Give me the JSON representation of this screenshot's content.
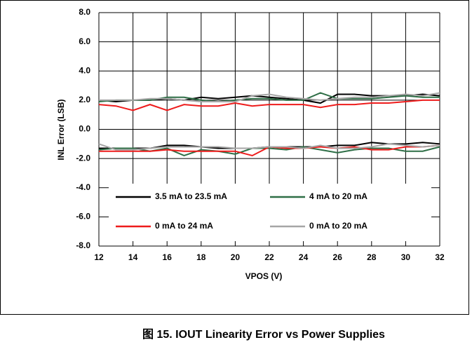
{
  "chart_data": {
    "type": "line",
    "caption": "图 15. IOUT Linearity Error vs Power Supplies",
    "xlabel": "VPOS (V)",
    "ylabel": "INL Error (LSB)",
    "x": [
      12,
      13,
      14,
      15,
      16,
      17,
      18,
      19,
      20,
      21,
      22,
      23,
      24,
      25,
      26,
      27,
      28,
      29,
      30,
      31,
      32
    ],
    "xlim": [
      12,
      32
    ],
    "xticks": [
      12,
      14,
      16,
      18,
      20,
      22,
      24,
      26,
      28,
      30,
      32
    ],
    "ylim": [
      -8,
      8
    ],
    "yticks": [
      {
        "value": -8,
        "label": "-8.0"
      },
      {
        "value": -6,
        "label": "-6.0"
      },
      {
        "value": -4,
        "label": "-4.0"
      },
      {
        "value": -2,
        "label": "-2.0"
      },
      {
        "value": 0,
        "label": "0.0"
      },
      {
        "value": 2,
        "label": "2.0"
      },
      {
        "value": 4,
        "label": "4.0"
      },
      {
        "value": 6,
        "label": "6.0"
      },
      {
        "value": 8,
        "label": "8.0"
      }
    ],
    "grid": true,
    "legend": "bottom",
    "series": [
      {
        "name": "3.5 mA to 23.5 mA",
        "color": "#000000",
        "values": [
          2.0,
          1.9,
          2.0,
          2.0,
          2.1,
          2.0,
          2.2,
          2.1,
          2.2,
          2.3,
          2.2,
          2.1,
          2.0,
          1.8,
          2.4,
          2.4,
          2.3,
          2.3,
          2.3,
          2.4,
          2.3
        ],
        "low_values": [
          -1.3,
          -1.3,
          -1.3,
          -1.3,
          -1.1,
          -1.1,
          -1.2,
          -1.3,
          -1.3,
          -1.3,
          -1.2,
          -1.2,
          -1.2,
          -1.2,
          -1.1,
          -1.1,
          -0.9,
          -1.0,
          -1.0,
          -0.9,
          -1.0
        ]
      },
      {
        "name": "4 mA to 20 mA",
        "color": "#2e6e46",
        "values": [
          1.9,
          2.0,
          2.0,
          2.0,
          2.2,
          2.2,
          2.0,
          1.9,
          2.0,
          2.1,
          2.1,
          2.0,
          2.0,
          2.5,
          2.1,
          2.1,
          2.1,
          2.2,
          2.3,
          2.2,
          2.2
        ],
        "low_values": [
          -1.4,
          -1.3,
          -1.3,
          -1.5,
          -1.3,
          -1.8,
          -1.4,
          -1.5,
          -1.7,
          -1.3,
          -1.3,
          -1.4,
          -1.2,
          -1.4,
          -1.6,
          -1.4,
          -1.3,
          -1.3,
          -1.5,
          -1.5,
          -1.2
        ]
      },
      {
        "name": "0 mA to 24 mA",
        "color": "#ee1c1c",
        "values": [
          1.7,
          1.6,
          1.3,
          1.7,
          1.3,
          1.7,
          1.6,
          1.6,
          1.8,
          1.6,
          1.7,
          1.7,
          1.7,
          1.5,
          1.7,
          1.7,
          1.8,
          1.8,
          1.9,
          2.0,
          2.0
        ],
        "low_values": [
          -1.5,
          -1.5,
          -1.5,
          -1.5,
          -1.4,
          -1.5,
          -1.5,
          -1.5,
          -1.5,
          -1.8,
          -1.2,
          -1.3,
          -1.3,
          -1.2,
          -1.3,
          -1.2,
          -1.4,
          -1.4,
          -1.2,
          -1.2,
          -1.1
        ]
      },
      {
        "name": "0 mA to 20 mA",
        "color": "#a6a6a6",
        "values": [
          2.0,
          2.0,
          2.0,
          2.1,
          2.1,
          2.0,
          1.9,
          1.9,
          1.9,
          2.3,
          2.4,
          2.2,
          2.1,
          2.0,
          2.1,
          2.2,
          2.2,
          2.3,
          2.4,
          2.3,
          2.5
        ],
        "low_values": [
          -1.0,
          -1.4,
          -1.4,
          -1.3,
          -1.2,
          -1.2,
          -1.2,
          -1.2,
          -1.3,
          -1.3,
          -1.2,
          -1.2,
          -1.3,
          -1.1,
          -1.3,
          -1.3,
          -1.2,
          -1.0,
          -1.1,
          -1.2,
          -1.1
        ]
      }
    ]
  }
}
